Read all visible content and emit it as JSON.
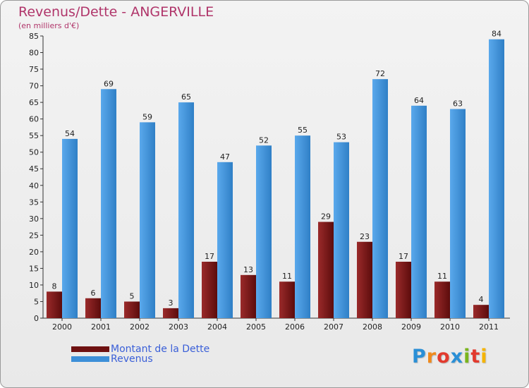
{
  "chart_data": {
    "type": "bar",
    "title": "Revenus/Dette - ANGERVILLE",
    "subtitle": "(en milliers d'€)",
    "categories": [
      "2000",
      "2001",
      "2002",
      "2003",
      "2004",
      "2005",
      "2006",
      "2007",
      "2008",
      "2009",
      "2010",
      "2011"
    ],
    "series": [
      {
        "name": "Montant de la Dette",
        "color": "#6e1111",
        "values": [
          8,
          6,
          5,
          3,
          17,
          13,
          11,
          29,
          23,
          17,
          11,
          4
        ]
      },
      {
        "name": "Revenus",
        "color": "#3d8fd8",
        "values": [
          54,
          69,
          59,
          65,
          47,
          52,
          55,
          53,
          72,
          64,
          63,
          84
        ]
      }
    ],
    "ylim": [
      0,
      85
    ],
    "yticks": [
      0,
      5,
      10,
      15,
      20,
      25,
      30,
      35,
      40,
      45,
      50,
      55,
      60,
      65,
      70,
      75,
      80,
      85
    ],
    "grid": false,
    "legend": "bottom-left"
  },
  "brand": {
    "letters": [
      "P",
      "r",
      "o",
      "x",
      "i",
      "t",
      "i"
    ],
    "colors": [
      "#2a8fd6",
      "#f08a1c",
      "#e23a2e",
      "#2a8fd6",
      "#7ab51d",
      "#e23a2e",
      "#f5b400"
    ]
  }
}
